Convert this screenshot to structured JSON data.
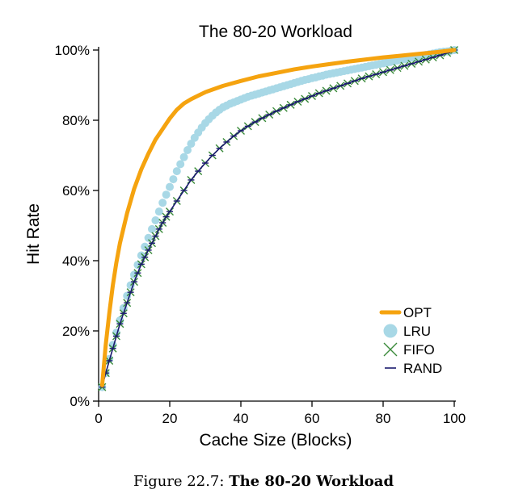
{
  "chart_data": {
    "type": "line",
    "title": "The 80-20 Workload",
    "xlabel": "Cache Size (Blocks)",
    "ylabel": "Hit Rate",
    "xlim": [
      0,
      100
    ],
    "ylim": [
      0,
      100
    ],
    "x_ticks": [
      "0",
      "20",
      "40",
      "60",
      "80",
      "100"
    ],
    "y_ticks": [
      "0%",
      "20%",
      "40%",
      "60%",
      "80%",
      "100%"
    ],
    "legend_position": "bottom-right",
    "series": [
      {
        "name": "OPT",
        "color": "#f5a30f",
        "marker": "line",
        "x": [
          1,
          2,
          3,
          4,
          5,
          6,
          8,
          10,
          12,
          14,
          16,
          18,
          20,
          22,
          24,
          26,
          28,
          30,
          35,
          40,
          45,
          50,
          55,
          60,
          65,
          70,
          75,
          80,
          85,
          90,
          95,
          100
        ],
        "y": [
          4.5,
          16,
          25,
          33,
          39.5,
          45,
          53.5,
          60.5,
          66,
          70.5,
          74.5,
          77.5,
          80.5,
          83,
          84.8,
          86,
          87,
          88,
          89.8,
          91.2,
          92.5,
          93.5,
          94.5,
          95.3,
          96,
          96.7,
          97.3,
          97.9,
          98.4,
          98.9,
          99.4,
          100
        ]
      },
      {
        "name": "LRU",
        "color": "#a8d8e6",
        "marker": "circle",
        "x": [
          1,
          2,
          3,
          4,
          5,
          6,
          7,
          8,
          9,
          10,
          11,
          12,
          13,
          14,
          15,
          16,
          17,
          18,
          19,
          20,
          21,
          22,
          23,
          24,
          25,
          26,
          27,
          28,
          29,
          30,
          31,
          32,
          33,
          34,
          35,
          36,
          37,
          38,
          39,
          40,
          41,
          42,
          43,
          44,
          45,
          46,
          47,
          48,
          49,
          50,
          51,
          52,
          53,
          54,
          55,
          56,
          57,
          58,
          59,
          60,
          61,
          62,
          63,
          64,
          65,
          66,
          67,
          68,
          69,
          70,
          71,
          72,
          73,
          74,
          75,
          76,
          77,
          78,
          79,
          80,
          81,
          82,
          83,
          84,
          85,
          86,
          87,
          88,
          89,
          90,
          91,
          92,
          93,
          94,
          95,
          96,
          97,
          98,
          99,
          100
        ],
        "y": [
          4,
          8,
          12,
          16,
          19.5,
          23,
          26.5,
          30,
          33,
          36,
          38.8,
          41.5,
          44,
          46.5,
          49,
          51.5,
          54,
          56.5,
          58.8,
          61,
          63.2,
          65.5,
          67.5,
          69.5,
          71.5,
          73.3,
          75,
          76.5,
          77.9,
          79.2,
          80.3,
          81.3,
          82.2,
          83,
          83.7,
          84.2,
          84.7,
          85.1,
          85.5,
          85.9,
          86.3,
          86.7,
          87,
          87.3,
          87.6,
          87.9,
          88.2,
          88.5,
          88.8,
          89.1,
          89.4,
          89.7,
          90,
          90.3,
          90.6,
          90.9,
          91.2,
          91.5,
          91.7,
          92,
          92.2,
          92.5,
          92.7,
          93,
          93.2,
          93.4,
          93.6,
          93.8,
          94,
          94.2,
          94.4,
          94.6,
          94.8,
          95,
          95.2,
          95.4,
          95.6,
          95.8,
          96,
          96.2,
          96.4,
          96.6,
          96.8,
          97,
          97.2,
          97.4,
          97.6,
          97.8,
          98,
          98.2,
          98.4,
          98.6,
          98.8,
          99,
          99.2,
          99.4,
          99.5,
          99.6,
          99.8,
          100
        ]
      },
      {
        "name": "FIFO",
        "color": "#3a8a3a",
        "marker": "x",
        "x": [
          1,
          2,
          3,
          4,
          5,
          6,
          7,
          8,
          9,
          10,
          11,
          12,
          13,
          14,
          15,
          16,
          17,
          18,
          19,
          20,
          22,
          24,
          26,
          28,
          30,
          32,
          34,
          36,
          38,
          40,
          42,
          44,
          46,
          48,
          50,
          52,
          54,
          56,
          58,
          60,
          62,
          64,
          66,
          68,
          70,
          72,
          74,
          76,
          78,
          80,
          82,
          84,
          86,
          88,
          90,
          92,
          94,
          96,
          98,
          100
        ],
        "y": [
          4,
          8,
          11.5,
          15,
          18.5,
          22,
          25,
          28,
          31,
          34,
          36.5,
          39,
          41,
          43,
          45,
          47,
          49,
          50.8,
          52.5,
          54,
          57,
          60,
          63,
          65.5,
          67.8,
          70,
          72,
          73.8,
          75.5,
          77,
          78.3,
          79.5,
          80.6,
          81.6,
          82.6,
          83.5,
          84.4,
          85.3,
          86.1,
          86.9,
          87.7,
          88.4,
          89.1,
          89.8,
          90.5,
          91.2,
          91.9,
          92.5,
          93.1,
          93.7,
          94.3,
          94.9,
          95.5,
          96.1,
          96.7,
          97.3,
          97.9,
          98.5,
          99.2,
          100
        ]
      },
      {
        "name": "RAND",
        "color": "#1a1a6e",
        "marker": "dash",
        "x": [
          1,
          2,
          3,
          4,
          5,
          6,
          7,
          8,
          9,
          10,
          11,
          12,
          13,
          14,
          15,
          16,
          17,
          18,
          19,
          20,
          22,
          24,
          26,
          28,
          30,
          32,
          34,
          36,
          38,
          40,
          42,
          44,
          46,
          48,
          50,
          52,
          54,
          56,
          58,
          60,
          62,
          64,
          66,
          68,
          70,
          72,
          74,
          76,
          78,
          80,
          82,
          84,
          86,
          88,
          90,
          92,
          94,
          96,
          98,
          100
        ],
        "y": [
          4,
          8,
          11.5,
          15,
          18.5,
          22,
          25,
          28,
          31,
          34,
          36.5,
          39,
          41,
          43,
          45,
          47,
          49,
          50.8,
          52.5,
          54,
          57,
          60,
          63,
          65.5,
          67.8,
          70,
          72,
          73.8,
          75.5,
          77,
          78.3,
          79.5,
          80.6,
          81.6,
          82.6,
          83.5,
          84.4,
          85.3,
          86.1,
          86.9,
          87.7,
          88.4,
          89.1,
          89.8,
          90.5,
          91.2,
          91.9,
          92.5,
          93.1,
          93.7,
          94.3,
          94.9,
          95.5,
          96.1,
          96.7,
          97.3,
          97.9,
          98.5,
          99.2,
          100
        ]
      }
    ]
  },
  "caption": {
    "prefix": "Figure 22.7: ",
    "bold": "The 80-20 Workload"
  }
}
